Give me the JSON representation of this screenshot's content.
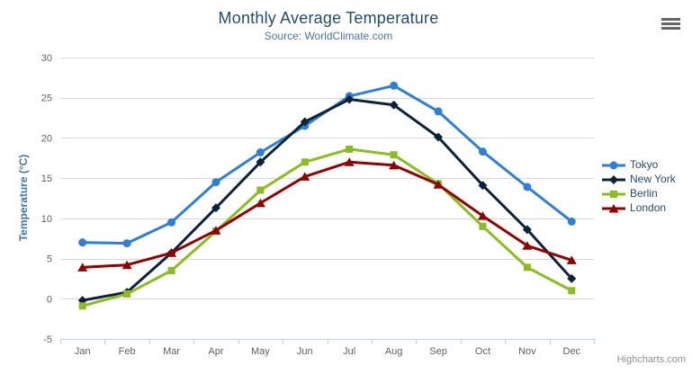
{
  "title": "Monthly Average Temperature",
  "subtitle": "Source: WorldClimate.com",
  "credits": "Highcharts.com",
  "menu_icon": "hamburger-icon",
  "colors": {
    "title": "#274b6d",
    "subtitle": "#4d759e",
    "axis_label": "#606060",
    "y_axis_title": "#4572a7",
    "gridline": "#d8d8d8",
    "axis_line": "#c0d0e0",
    "legend_text": "#274b6d",
    "credits": "#909090",
    "menu_icon": "#666666",
    "background": "#ffffff"
  },
  "chart_data": {
    "type": "line",
    "title": "Monthly Average Temperature",
    "subtitle": "Source: WorldClimate.com",
    "xlabel": "",
    "ylabel": "Temperature (°C)",
    "categories": [
      "Jan",
      "Feb",
      "Mar",
      "Apr",
      "May",
      "Jun",
      "Jul",
      "Aug",
      "Sep",
      "Oct",
      "Nov",
      "Dec"
    ],
    "ylim": [
      -5,
      30
    ],
    "y_ticks": [
      -5,
      0,
      5,
      10,
      15,
      20,
      25,
      30
    ],
    "grid": true,
    "legend_position": "right",
    "series": [
      {
        "name": "Tokyo",
        "color": "#2f7ed8",
        "marker": "circle",
        "values": [
          7.0,
          6.9,
          9.5,
          14.5,
          18.2,
          21.5,
          25.2,
          26.5,
          23.3,
          18.3,
          13.9,
          9.6
        ]
      },
      {
        "name": "New York",
        "color": "#0d233a",
        "marker": "diamond",
        "values": [
          -0.2,
          0.8,
          5.7,
          11.3,
          17.0,
          22.0,
          24.8,
          24.1,
          20.1,
          14.1,
          8.6,
          2.5
        ]
      },
      {
        "name": "Berlin",
        "color": "#8bbc21",
        "marker": "square",
        "values": [
          -0.9,
          0.6,
          3.5,
          8.4,
          13.5,
          17.0,
          18.6,
          17.9,
          14.3,
          9.0,
          3.9,
          1.0
        ]
      },
      {
        "name": "London",
        "color": "#910000",
        "marker": "triangle",
        "values": [
          3.9,
          4.2,
          5.7,
          8.5,
          11.9,
          15.2,
          17.0,
          16.6,
          14.2,
          10.3,
          6.6,
          4.8
        ]
      }
    ]
  }
}
